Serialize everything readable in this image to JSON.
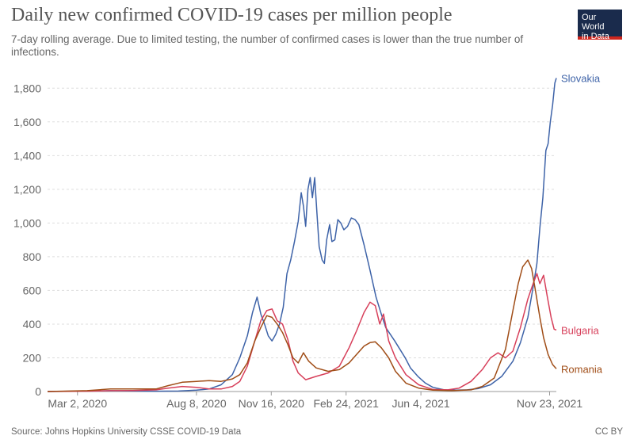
{
  "header": {
    "title": "Daily new confirmed COVID-19 cases per million people",
    "subtitle": "7-day rolling average. Due to limited testing, the number of confirmed cases is lower than the true number of infections.",
    "logo_line1": "Our World",
    "logo_line2": "in Data"
  },
  "footer": {
    "source": "Source: Johns Hopkins University CSSE COVID-19 Data",
    "license": "CC BY"
  },
  "colors": {
    "slovakia": "#3e63a8",
    "bulgaria": "#d73f5a",
    "romania": "#a04d17",
    "grid": "#dddddd",
    "axis": "#999999"
  },
  "chart_data": {
    "type": "line",
    "title": "Daily new confirmed COVID-19 cases per million people",
    "subtitle": "7-day rolling average. Due to limited testing, the number of confirmed cases is lower than the true number of infections.",
    "xlabel": "",
    "ylabel": "",
    "x_ticks": [
      "Mar 2, 2020",
      "Aug 8, 2020",
      "Nov 16, 2020",
      "Feb 24, 2021",
      "Jun 4, 2021",
      "Nov 23, 2021"
    ],
    "x_range": [
      "2020-01-22",
      "2021-12-02"
    ],
    "ylim": [
      0,
      1900
    ],
    "y_ticks": [
      0,
      200,
      400,
      600,
      800,
      1000,
      1200,
      1400,
      1600,
      1800
    ],
    "y_tick_labels": [
      "0",
      "200",
      "400",
      "600",
      "800",
      "1,000",
      "1,200",
      "1,400",
      "1,600",
      "1,800"
    ],
    "grid": "horizontal dashed",
    "legend": "labels at line ends (right)",
    "series": [
      {
        "name": "Slovakia",
        "points": [
          [
            "2020-01-22",
            0
          ],
          [
            "2020-03-15",
            3
          ],
          [
            "2020-04-15",
            5
          ],
          [
            "2020-05-15",
            3
          ],
          [
            "2020-06-15",
            2
          ],
          [
            "2020-07-15",
            3
          ],
          [
            "2020-08-08",
            8
          ],
          [
            "2020-08-25",
            15
          ],
          [
            "2020-09-10",
            40
          ],
          [
            "2020-09-25",
            100
          ],
          [
            "2020-10-05",
            200
          ],
          [
            "2020-10-15",
            330
          ],
          [
            "2020-10-22",
            470
          ],
          [
            "2020-10-28",
            560
          ],
          [
            "2020-11-02",
            460
          ],
          [
            "2020-11-07",
            400
          ],
          [
            "2020-11-12",
            330
          ],
          [
            "2020-11-17",
            300
          ],
          [
            "2020-11-22",
            340
          ],
          [
            "2020-11-27",
            400
          ],
          [
            "2020-12-02",
            500
          ],
          [
            "2020-12-07",
            700
          ],
          [
            "2020-12-12",
            780
          ],
          [
            "2020-12-17",
            890
          ],
          [
            "2020-12-22",
            1010
          ],
          [
            "2020-12-26",
            1180
          ],
          [
            "2020-12-29",
            1100
          ],
          [
            "2021-01-01",
            980
          ],
          [
            "2021-01-04",
            1200
          ],
          [
            "2021-01-07",
            1270
          ],
          [
            "2021-01-10",
            1150
          ],
          [
            "2021-01-13",
            1270
          ],
          [
            "2021-01-16",
            1060
          ],
          [
            "2021-01-19",
            860
          ],
          [
            "2021-01-23",
            780
          ],
          [
            "2021-01-26",
            760
          ],
          [
            "2021-01-29",
            900
          ],
          [
            "2021-02-02",
            990
          ],
          [
            "2021-02-05",
            890
          ],
          [
            "2021-02-09",
            900
          ],
          [
            "2021-02-13",
            1020
          ],
          [
            "2021-02-17",
            1000
          ],
          [
            "2021-02-21",
            960
          ],
          [
            "2021-02-26",
            980
          ],
          [
            "2021-03-03",
            1030
          ],
          [
            "2021-03-08",
            1020
          ],
          [
            "2021-03-13",
            990
          ],
          [
            "2021-03-20",
            870
          ],
          [
            "2021-03-28",
            720
          ],
          [
            "2021-04-05",
            560
          ],
          [
            "2021-04-12",
            460
          ],
          [
            "2021-04-18",
            380
          ],
          [
            "2021-04-24",
            340
          ],
          [
            "2021-04-30",
            300
          ],
          [
            "2021-05-07",
            250
          ],
          [
            "2021-05-14",
            200
          ],
          [
            "2021-05-21",
            140
          ],
          [
            "2021-05-31",
            90
          ],
          [
            "2021-06-10",
            50
          ],
          [
            "2021-06-20",
            25
          ],
          [
            "2021-07-05",
            10
          ],
          [
            "2021-07-20",
            8
          ],
          [
            "2021-08-05",
            10
          ],
          [
            "2021-08-20",
            18
          ],
          [
            "2021-09-05",
            40
          ],
          [
            "2021-09-20",
            90
          ],
          [
            "2021-10-05",
            180
          ],
          [
            "2021-10-15",
            290
          ],
          [
            "2021-10-25",
            440
          ],
          [
            "2021-11-01",
            620
          ],
          [
            "2021-11-06",
            760
          ],
          [
            "2021-11-10",
            970
          ],
          [
            "2021-11-14",
            1150
          ],
          [
            "2021-11-18",
            1430
          ],
          [
            "2021-11-21",
            1470
          ],
          [
            "2021-11-24",
            1600
          ],
          [
            "2021-11-27",
            1700
          ],
          [
            "2021-11-30",
            1830
          ],
          [
            "2021-12-02",
            1860
          ]
        ]
      },
      {
        "name": "Bulgaria",
        "points": [
          [
            "2020-01-22",
            0
          ],
          [
            "2020-03-15",
            2
          ],
          [
            "2020-04-15",
            5
          ],
          [
            "2020-05-15",
            6
          ],
          [
            "2020-06-15",
            10
          ],
          [
            "2020-07-01",
            20
          ],
          [
            "2020-07-20",
            30
          ],
          [
            "2020-08-08",
            25
          ],
          [
            "2020-08-25",
            15
          ],
          [
            "2020-09-10",
            15
          ],
          [
            "2020-09-25",
            30
          ],
          [
            "2020-10-05",
            60
          ],
          [
            "2020-10-15",
            150
          ],
          [
            "2020-10-25",
            300
          ],
          [
            "2020-11-02",
            420
          ],
          [
            "2020-11-10",
            480
          ],
          [
            "2020-11-17",
            490
          ],
          [
            "2020-11-24",
            420
          ],
          [
            "2020-12-01",
            400
          ],
          [
            "2020-12-08",
            310
          ],
          [
            "2020-12-15",
            180
          ],
          [
            "2020-12-22",
            110
          ],
          [
            "2021-01-01",
            70
          ],
          [
            "2021-01-15",
            90
          ],
          [
            "2021-01-31",
            110
          ],
          [
            "2021-02-15",
            150
          ],
          [
            "2021-02-28",
            260
          ],
          [
            "2021-03-10",
            360
          ],
          [
            "2021-03-20",
            470
          ],
          [
            "2021-03-28",
            530
          ],
          [
            "2021-04-04",
            510
          ],
          [
            "2021-04-10",
            400
          ],
          [
            "2021-04-15",
            460
          ],
          [
            "2021-04-22",
            300
          ],
          [
            "2021-05-01",
            200
          ],
          [
            "2021-05-15",
            100
          ],
          [
            "2021-06-01",
            40
          ],
          [
            "2021-06-20",
            12
          ],
          [
            "2021-07-10",
            10
          ],
          [
            "2021-07-25",
            20
          ],
          [
            "2021-08-10",
            60
          ],
          [
            "2021-08-25",
            130
          ],
          [
            "2021-09-05",
            200
          ],
          [
            "2021-09-15",
            230
          ],
          [
            "2021-09-25",
            200
          ],
          [
            "2021-10-05",
            240
          ],
          [
            "2021-10-15",
            380
          ],
          [
            "2021-10-25",
            550
          ],
          [
            "2021-11-01",
            640
          ],
          [
            "2021-11-06",
            700
          ],
          [
            "2021-11-10",
            640
          ],
          [
            "2021-11-15",
            690
          ],
          [
            "2021-11-20",
            560
          ],
          [
            "2021-11-25",
            440
          ],
          [
            "2021-11-29",
            370
          ],
          [
            "2021-12-02",
            365
          ]
        ]
      },
      {
        "name": "Romania",
        "points": [
          [
            "2020-01-22",
            0
          ],
          [
            "2020-03-15",
            5
          ],
          [
            "2020-04-15",
            15
          ],
          [
            "2020-05-15",
            15
          ],
          [
            "2020-06-15",
            15
          ],
          [
            "2020-07-01",
            35
          ],
          [
            "2020-07-20",
            55
          ],
          [
            "2020-08-08",
            60
          ],
          [
            "2020-08-25",
            65
          ],
          [
            "2020-09-10",
            60
          ],
          [
            "2020-09-25",
            75
          ],
          [
            "2020-10-05",
            100
          ],
          [
            "2020-10-15",
            170
          ],
          [
            "2020-10-25",
            300
          ],
          [
            "2020-11-02",
            380
          ],
          [
            "2020-11-10",
            450
          ],
          [
            "2020-11-17",
            440
          ],
          [
            "2020-11-24",
            400
          ],
          [
            "2020-12-01",
            350
          ],
          [
            "2020-12-08",
            280
          ],
          [
            "2020-12-15",
            200
          ],
          [
            "2020-12-22",
            170
          ],
          [
            "2020-12-29",
            230
          ],
          [
            "2021-01-05",
            180
          ],
          [
            "2021-01-15",
            140
          ],
          [
            "2021-01-31",
            120
          ],
          [
            "2021-02-15",
            130
          ],
          [
            "2021-02-28",
            170
          ],
          [
            "2021-03-10",
            220
          ],
          [
            "2021-03-20",
            270
          ],
          [
            "2021-03-28",
            290
          ],
          [
            "2021-04-04",
            295
          ],
          [
            "2021-04-12",
            260
          ],
          [
            "2021-04-22",
            200
          ],
          [
            "2021-05-01",
            120
          ],
          [
            "2021-05-15",
            50
          ],
          [
            "2021-06-01",
            20
          ],
          [
            "2021-06-20",
            8
          ],
          [
            "2021-07-15",
            5
          ],
          [
            "2021-08-10",
            10
          ],
          [
            "2021-08-25",
            30
          ],
          [
            "2021-09-10",
            80
          ],
          [
            "2021-09-25",
            250
          ],
          [
            "2021-10-05",
            480
          ],
          [
            "2021-10-12",
            640
          ],
          [
            "2021-10-18",
            740
          ],
          [
            "2021-10-25",
            780
          ],
          [
            "2021-10-30",
            730
          ],
          [
            "2021-11-04",
            600
          ],
          [
            "2021-11-10",
            440
          ],
          [
            "2021-11-15",
            320
          ],
          [
            "2021-11-21",
            220
          ],
          [
            "2021-11-27",
            160
          ],
          [
            "2021-12-02",
            135
          ]
        ]
      }
    ]
  }
}
